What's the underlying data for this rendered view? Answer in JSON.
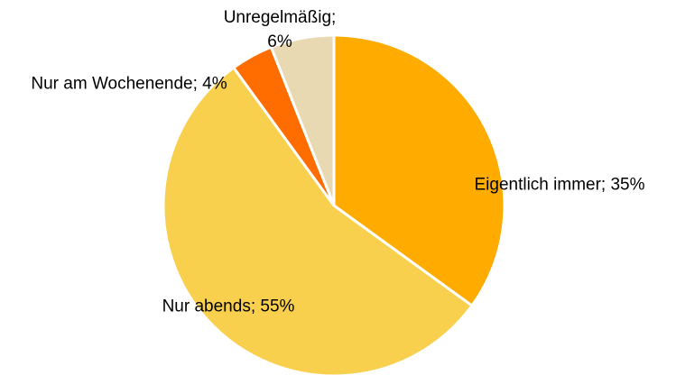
{
  "chart_data": {
    "type": "pie",
    "values": [
      35,
      55,
      4,
      6
    ],
    "value_labels": [
      "Eigentlich immer; 35%",
      "Nur abends; 55%",
      "Nur am Wochenende; 4%",
      "Unregelmäßig; 6%"
    ],
    "colors": [
      "#ffab00",
      "#f9d04e",
      "#ff6c00",
      "#e8d9b3"
    ]
  }
}
